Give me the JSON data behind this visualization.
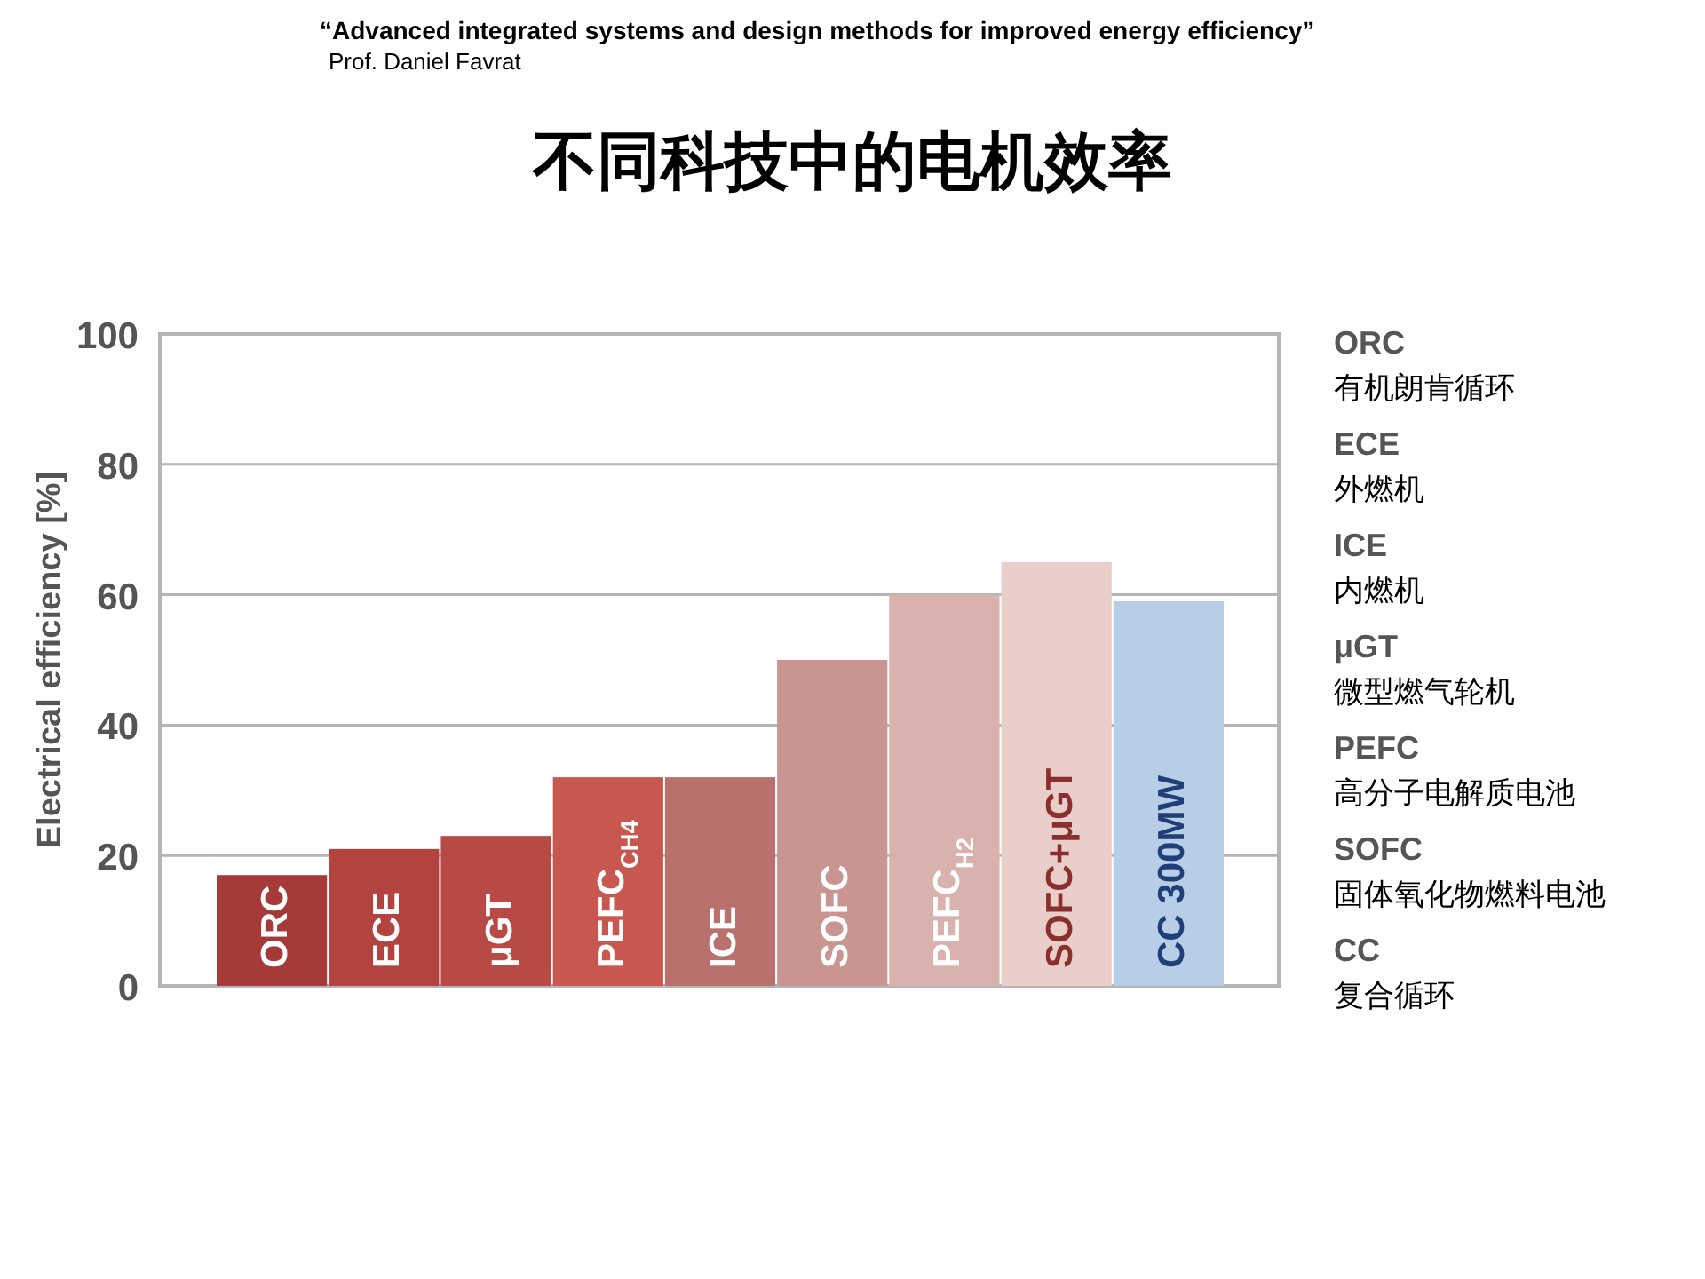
{
  "chart_data": {
    "type": "bar",
    "title": "不同科技中的电机效率",
    "subtitle": "“Advanced integrated systems and design methods for improved energy efficiency”",
    "ylabel": "Electrical efficiency [%]",
    "categories": [
      "ORC",
      "ECE",
      "μGT",
      "PEFC$_{CH4}$",
      "ICE",
      "SOFC",
      "PEFC$_{H2}$",
      "SOFC+μGT",
      "CC 300MW"
    ],
    "values": [
      17,
      21,
      23,
      32,
      32,
      50,
      60,
      65,
      59
    ],
    "colors": [
      "#a63a38",
      "#b3433f",
      "#b84a46",
      "#c8574f",
      "#b8716d",
      "#c99591",
      "#dab2ad",
      "#e9cec9",
      "#b8cde6"
    ],
    "ylim": [
      0,
      100
    ],
    "yticks": [
      0,
      20,
      40,
      60,
      80,
      100
    ],
    "grid": "y",
    "annotations": [
      "Prof. Daniel Favrat",
      "ORC",
      "有机朗肯循环",
      "ECE",
      "外燃机",
      "ICE",
      "内燃机",
      "μGT",
      "微型燃气轮机",
      "PEFC",
      "高分子电解质电池",
      "SOFC",
      "固体氧化物燃料电池",
      "CC",
      "复合循环"
    ]
  }
}
